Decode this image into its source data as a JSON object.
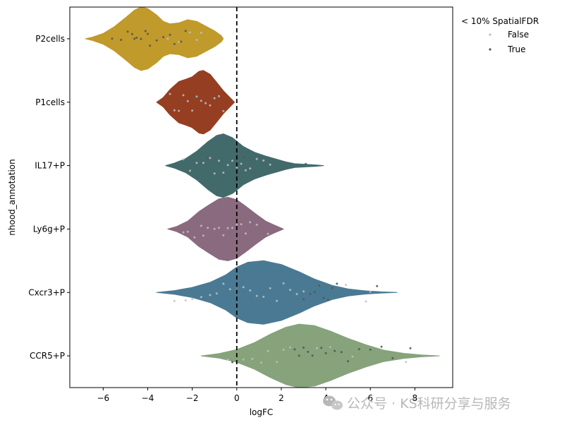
{
  "chart_data": {
    "type": "violin",
    "orientation": "horizontal",
    "xlabel": "logFC",
    "ylabel": "nhood_annotation",
    "xlim": [
      -7.5,
      9.7
    ],
    "xticks": [
      -6,
      -4,
      -2,
      0,
      2,
      4,
      6,
      8
    ],
    "xtick_labels": [
      "−6",
      "−4",
      "−2",
      "0",
      "2",
      "4",
      "6",
      "8"
    ],
    "reference_line": {
      "x": 0,
      "style": "dashed",
      "color": "#000000"
    },
    "grid": false,
    "legend": {
      "title": "< 10% SpatialFDR",
      "placement": "outside-top-right",
      "entries": [
        {
          "label": "False",
          "color": "#c0c0c0"
        },
        {
          "label": "True",
          "color": "#555555"
        }
      ]
    },
    "categories": [
      {
        "name": "P2cells",
        "color": "#c09a2b",
        "density": [
          [
            -6.8,
            0.0
          ],
          [
            -6.5,
            0.05
          ],
          [
            -6.0,
            0.17
          ],
          [
            -5.5,
            0.38
          ],
          [
            -5.0,
            0.66
          ],
          [
            -4.6,
            0.9
          ],
          [
            -4.3,
            1.0
          ],
          [
            -4.0,
            0.95
          ],
          [
            -3.6,
            0.75
          ],
          [
            -3.3,
            0.55
          ],
          [
            -3.0,
            0.47
          ],
          [
            -2.6,
            0.5
          ],
          [
            -2.2,
            0.6
          ],
          [
            -1.8,
            0.55
          ],
          [
            -1.4,
            0.4
          ],
          [
            -1.0,
            0.25
          ],
          [
            -0.7,
            0.1
          ],
          [
            -0.6,
            0.0
          ]
        ],
        "points": [
          {
            "x": -5.6,
            "sig": true
          },
          {
            "x": -5.2,
            "sig": true
          },
          {
            "x": -4.9,
            "sig": true
          },
          {
            "x": -4.7,
            "sig": true
          },
          {
            "x": -4.5,
            "sig": true
          },
          {
            "x": -4.3,
            "sig": true
          },
          {
            "x": -4.1,
            "sig": true
          },
          {
            "x": -3.9,
            "sig": true
          },
          {
            "x": -3.6,
            "sig": true
          },
          {
            "x": -3.3,
            "sig": true
          },
          {
            "x": -3.0,
            "sig": true
          },
          {
            "x": -2.8,
            "sig": true
          },
          {
            "x": -2.5,
            "sig": true
          },
          {
            "x": -2.3,
            "sig": true
          },
          {
            "x": -4.6,
            "sig": true
          },
          {
            "x": -4.0,
            "sig": true
          },
          {
            "x": -2.6,
            "sig": false
          },
          {
            "x": -2.1,
            "sig": false
          },
          {
            "x": -1.8,
            "sig": false
          },
          {
            "x": -3.1,
            "sig": false
          },
          {
            "x": -1.6,
            "sig": false
          }
        ]
      },
      {
        "name": "P1cells",
        "color": "#963e22",
        "density": [
          [
            -3.6,
            0.0
          ],
          [
            -3.3,
            0.15
          ],
          [
            -3.0,
            0.4
          ],
          [
            -2.6,
            0.65
          ],
          [
            -2.3,
            0.72
          ],
          [
            -2.0,
            0.8
          ],
          [
            -1.7,
            0.97
          ],
          [
            -1.5,
            1.0
          ],
          [
            -1.2,
            0.88
          ],
          [
            -0.9,
            0.62
          ],
          [
            -0.6,
            0.36
          ],
          [
            -0.3,
            0.14
          ],
          [
            -0.1,
            0.0
          ]
        ],
        "points": [
          {
            "x": -3.0,
            "sig": false
          },
          {
            "x": -2.8,
            "sig": false
          },
          {
            "x": -2.6,
            "sig": false
          },
          {
            "x": -2.4,
            "sig": false
          },
          {
            "x": -2.2,
            "sig": false
          },
          {
            "x": -2.0,
            "sig": false
          },
          {
            "x": -1.8,
            "sig": false
          },
          {
            "x": -1.6,
            "sig": false
          },
          {
            "x": -1.4,
            "sig": false
          },
          {
            "x": -1.2,
            "sig": false
          },
          {
            "x": -1.0,
            "sig": false
          },
          {
            "x": -0.8,
            "sig": false
          },
          {
            "x": -0.6,
            "sig": false
          },
          {
            "x": -2.5,
            "sig": true
          },
          {
            "x": -1.9,
            "sig": true
          },
          {
            "x": -1.5,
            "sig": true
          },
          {
            "x": -1.1,
            "sig": true
          }
        ]
      },
      {
        "name": "IL17+P",
        "color": "#436a6b",
        "density": [
          [
            -3.2,
            0.0
          ],
          [
            -2.8,
            0.08
          ],
          [
            -2.3,
            0.22
          ],
          [
            -1.8,
            0.45
          ],
          [
            -1.3,
            0.75
          ],
          [
            -0.9,
            0.95
          ],
          [
            -0.6,
            1.0
          ],
          [
            -0.2,
            0.88
          ],
          [
            0.3,
            0.6
          ],
          [
            0.8,
            0.42
          ],
          [
            1.3,
            0.3
          ],
          [
            1.8,
            0.2
          ],
          [
            2.2,
            0.12
          ],
          [
            2.6,
            0.06
          ],
          [
            3.1,
            0.04
          ],
          [
            3.6,
            0.02
          ],
          [
            3.9,
            0.0
          ]
        ],
        "points": [
          {
            "x": -2.4,
            "sig": false
          },
          {
            "x": -2.1,
            "sig": false
          },
          {
            "x": -1.8,
            "sig": false
          },
          {
            "x": -1.5,
            "sig": false
          },
          {
            "x": -1.2,
            "sig": false
          },
          {
            "x": -1.0,
            "sig": false
          },
          {
            "x": -0.8,
            "sig": false
          },
          {
            "x": -0.6,
            "sig": false
          },
          {
            "x": -0.4,
            "sig": false
          },
          {
            "x": -0.2,
            "sig": false
          },
          {
            "x": 0.0,
            "sig": false
          },
          {
            "x": 0.2,
            "sig": false
          },
          {
            "x": 0.4,
            "sig": false
          },
          {
            "x": 0.6,
            "sig": false
          },
          {
            "x": 0.9,
            "sig": false
          },
          {
            "x": 1.2,
            "sig": false
          },
          {
            "x": 1.5,
            "sig": false
          },
          {
            "x": -1.3,
            "sig": true
          },
          {
            "x": 0.3,
            "sig": true
          },
          {
            "x": 3.1,
            "sig": true
          }
        ]
      },
      {
        "name": "Ly6g+P",
        "color": "#8a6a7e",
        "density": [
          [
            -3.1,
            0.0
          ],
          [
            -2.7,
            0.08
          ],
          [
            -2.2,
            0.25
          ],
          [
            -1.7,
            0.55
          ],
          [
            -1.2,
            0.78
          ],
          [
            -0.8,
            0.95
          ],
          [
            -0.4,
            1.0
          ],
          [
            0.0,
            0.92
          ],
          [
            0.4,
            0.72
          ],
          [
            0.9,
            0.45
          ],
          [
            1.3,
            0.25
          ],
          [
            1.7,
            0.12
          ],
          [
            2.1,
            0.0
          ]
        ],
        "points": [
          {
            "x": -2.4,
            "sig": false
          },
          {
            "x": -2.2,
            "sig": false
          },
          {
            "x": -1.9,
            "sig": false
          },
          {
            "x": -1.6,
            "sig": false
          },
          {
            "x": -1.3,
            "sig": false
          },
          {
            "x": -1.0,
            "sig": false
          },
          {
            "x": -0.8,
            "sig": false
          },
          {
            "x": -0.6,
            "sig": false
          },
          {
            "x": -0.4,
            "sig": false
          },
          {
            "x": -0.2,
            "sig": false
          },
          {
            "x": 0.0,
            "sig": false
          },
          {
            "x": 0.2,
            "sig": false
          },
          {
            "x": 0.4,
            "sig": false
          },
          {
            "x": 0.6,
            "sig": false
          },
          {
            "x": 0.9,
            "sig": false
          },
          {
            "x": 1.4,
            "sig": false
          },
          {
            "x": -1.5,
            "sig": false
          }
        ]
      },
      {
        "name": "Cxcr3+P",
        "color": "#4a7a93",
        "density": [
          [
            -3.6,
            0.0
          ],
          [
            -2.8,
            0.06
          ],
          [
            -2.0,
            0.16
          ],
          [
            -1.2,
            0.32
          ],
          [
            -0.5,
            0.55
          ],
          [
            0.0,
            0.8
          ],
          [
            0.5,
            0.95
          ],
          [
            1.2,
            1.0
          ],
          [
            2.0,
            0.88
          ],
          [
            2.8,
            0.65
          ],
          [
            3.5,
            0.42
          ],
          [
            4.3,
            0.22
          ],
          [
            5.0,
            0.11
          ],
          [
            5.8,
            0.05
          ],
          [
            6.5,
            0.02
          ],
          [
            7.2,
            0.0
          ]
        ],
        "points": [
          {
            "x": -2.8,
            "sig": false
          },
          {
            "x": -2.3,
            "sig": false
          },
          {
            "x": -2.0,
            "sig": false
          },
          {
            "x": -1.6,
            "sig": false
          },
          {
            "x": -1.2,
            "sig": false
          },
          {
            "x": -0.9,
            "sig": false
          },
          {
            "x": -0.6,
            "sig": false
          },
          {
            "x": -0.3,
            "sig": false
          },
          {
            "x": 0.0,
            "sig": false
          },
          {
            "x": 0.3,
            "sig": false
          },
          {
            "x": 0.6,
            "sig": false
          },
          {
            "x": 0.9,
            "sig": false
          },
          {
            "x": 1.2,
            "sig": false
          },
          {
            "x": 1.5,
            "sig": false
          },
          {
            "x": 1.8,
            "sig": false
          },
          {
            "x": 2.1,
            "sig": false
          },
          {
            "x": 2.4,
            "sig": false
          },
          {
            "x": 2.7,
            "sig": false
          },
          {
            "x": 3.0,
            "sig": false
          },
          {
            "x": 4.9,
            "sig": false
          },
          {
            "x": 5.8,
            "sig": false
          },
          {
            "x": 6.0,
            "sig": false
          },
          {
            "x": 3.0,
            "sig": true
          },
          {
            "x": 3.3,
            "sig": true
          },
          {
            "x": 3.5,
            "sig": true
          },
          {
            "x": 3.7,
            "sig": true
          },
          {
            "x": 3.9,
            "sig": true
          },
          {
            "x": 4.1,
            "sig": true
          },
          {
            "x": 4.3,
            "sig": true
          },
          {
            "x": 4.5,
            "sig": true
          },
          {
            "x": 6.3,
            "sig": true
          }
        ]
      },
      {
        "name": "CCR5+P",
        "color": "#86a37c",
        "density": [
          [
            -1.6,
            0.0
          ],
          [
            -0.8,
            0.07
          ],
          [
            0.0,
            0.2
          ],
          [
            0.8,
            0.42
          ],
          [
            1.5,
            0.68
          ],
          [
            2.2,
            0.9
          ],
          [
            2.8,
            1.0
          ],
          [
            3.5,
            0.95
          ],
          [
            4.2,
            0.78
          ],
          [
            5.0,
            0.55
          ],
          [
            5.8,
            0.35
          ],
          [
            6.6,
            0.18
          ],
          [
            7.5,
            0.08
          ],
          [
            8.3,
            0.03
          ],
          [
            9.1,
            0.0
          ]
        ],
        "points": [
          {
            "x": -0.4,
            "sig": false
          },
          {
            "x": 0.3,
            "sig": false
          },
          {
            "x": 0.7,
            "sig": false
          },
          {
            "x": 1.1,
            "sig": false
          },
          {
            "x": 1.4,
            "sig": false
          },
          {
            "x": 1.8,
            "sig": false
          },
          {
            "x": 2.1,
            "sig": false
          },
          {
            "x": 2.4,
            "sig": false
          },
          {
            "x": 3.6,
            "sig": false
          },
          {
            "x": 4.2,
            "sig": false
          },
          {
            "x": 5.2,
            "sig": false
          },
          {
            "x": 7.6,
            "sig": false
          },
          {
            "x": -0.2,
            "sig": true
          },
          {
            "x": 2.6,
            "sig": true
          },
          {
            "x": 2.8,
            "sig": true
          },
          {
            "x": 3.0,
            "sig": true
          },
          {
            "x": 3.2,
            "sig": true
          },
          {
            "x": 3.4,
            "sig": true
          },
          {
            "x": 3.8,
            "sig": true
          },
          {
            "x": 4.0,
            "sig": true
          },
          {
            "x": 4.4,
            "sig": true
          },
          {
            "x": 4.7,
            "sig": true
          },
          {
            "x": 5.0,
            "sig": true
          },
          {
            "x": 5.5,
            "sig": true
          },
          {
            "x": 6.0,
            "sig": true
          },
          {
            "x": 6.5,
            "sig": true
          },
          {
            "x": 7.0,
            "sig": true
          },
          {
            "x": 7.8,
            "sig": true
          }
        ]
      }
    ]
  },
  "watermark": {
    "text": "公众号 · KS科研分享与服务"
  }
}
